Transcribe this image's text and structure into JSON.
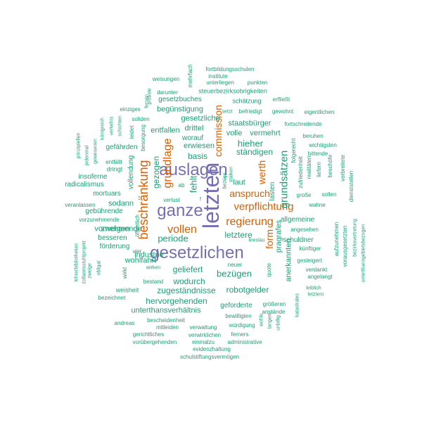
{
  "cloud": {
    "colors": {
      "teal": "#1b9e77",
      "orange": "#d95f02",
      "purple": "#7570b3"
    },
    "words": [
      {
        "text": "letzten",
        "color": "purple",
        "vertical": true
      },
      {
        "text": "ganze",
        "color": "purple",
        "vertical": false
      },
      {
        "text": "auslagen",
        "color": "purple",
        "vertical": false
      },
      {
        "text": "gesetzlichen",
        "color": "purple",
        "vertical": false
      },
      {
        "text": "beschränkung",
        "color": "orange",
        "vertical": true
      },
      {
        "text": "grundlage",
        "color": "orange",
        "vertical": true
      },
      {
        "text": "vollen",
        "color": "orange",
        "vertical": false
      },
      {
        "text": "regierung",
        "color": "orange",
        "vertical": false
      },
      {
        "text": "verpflichtung",
        "color": "orange",
        "vertical": false
      },
      {
        "text": "anspruch",
        "color": "orange",
        "vertical": false
      },
      {
        "text": "commission",
        "color": "orange",
        "vertical": true
      },
      {
        "text": "werth",
        "color": "orange",
        "vertical": true
      },
      {
        "text": "form",
        "color": "orange",
        "vertical": true
      },
      {
        "text": "grundsätzen",
        "color": "teal",
        "vertical": true
      },
      {
        "text": "fehlt",
        "color": "teal",
        "vertical": true
      },
      {
        "text": "gezogen",
        "color": "teal",
        "vertical": true
      },
      {
        "text": "periode",
        "color": "teal",
        "vertical": false
      },
      {
        "text": "hieher",
        "color": "teal",
        "vertical": false
      },
      {
        "text": "ständigen",
        "color": "teal",
        "vertical": false
      },
      {
        "text": "laut",
        "color": "teal",
        "vertical": false
      },
      {
        "text": "staatsbürger",
        "color": "teal",
        "vertical": false
      },
      {
        "text": "volle",
        "color": "teal",
        "vertical": false
      },
      {
        "text": "vermehrt",
        "color": "teal",
        "vertical": false
      },
      {
        "text": "basis",
        "color": "teal",
        "vertical": false
      },
      {
        "text": "drittel",
        "color": "teal",
        "vertical": false
      },
      {
        "text": "entfallen",
        "color": "teal",
        "vertical": false
      },
      {
        "text": "gesetzliche",
        "color": "teal",
        "vertical": false
      },
      {
        "text": "begünstigung",
        "color": "teal",
        "vertical": false
      },
      {
        "text": "erwiesen",
        "color": "teal",
        "vertical": false
      },
      {
        "text": "worauf",
        "color": "teal",
        "vertical": false
      },
      {
        "text": "gesetzbuches",
        "color": "teal",
        "vertical": false
      },
      {
        "text": "darunter",
        "color": "teal",
        "vertical": false
      },
      {
        "text": "steuerbezirksobrigkeiten",
        "color": "teal",
        "vertical": false
      },
      {
        "text": "unterliegen",
        "color": "teal",
        "vertical": false
      },
      {
        "text": "institute",
        "color": "teal",
        "vertical": false
      },
      {
        "text": "punkten",
        "color": "teal",
        "vertical": false
      },
      {
        "text": "fortbildungsschulen",
        "color": "teal",
        "vertical": false
      },
      {
        "text": "weisungen",
        "color": "teal",
        "vertical": false
      },
      {
        "text": "mehrfach",
        "color": "teal",
        "vertical": true
      },
      {
        "text": "schätzung",
        "color": "teal",
        "vertical": false
      },
      {
        "text": "erfließt",
        "color": "teal",
        "vertical": false
      },
      {
        "text": "befriedigt",
        "color": "teal",
        "vertical": false
      },
      {
        "text": "gewohnt",
        "color": "teal",
        "vertical": false
      },
      {
        "text": "eigentlichen",
        "color": "teal",
        "vertical": false
      },
      {
        "text": "setzt",
        "color": "teal",
        "vertical": false
      },
      {
        "text": "fortschreitende",
        "color": "teal",
        "vertical": false
      },
      {
        "text": "beruhen",
        "color": "teal",
        "vertical": false
      },
      {
        "text": "wichtigsten",
        "color": "teal",
        "vertical": false
      },
      {
        "text": "bittende",
        "color": "teal",
        "vertical": false
      },
      {
        "text": "folgerecht",
        "color": "teal",
        "vertical": true
      },
      {
        "text": "zufriedenheit",
        "color": "teal",
        "vertical": true
      },
      {
        "text": "realitäten",
        "color": "teal",
        "vertical": true
      },
      {
        "text": "liefern",
        "color": "teal",
        "vertical": true
      },
      {
        "text": "beschöfe",
        "color": "teal",
        "vertical": true
      },
      {
        "text": "verbreitete",
        "color": "teal",
        "vertical": true
      },
      {
        "text": "dienststellen",
        "color": "teal",
        "vertical": true
      },
      {
        "text": "sollen",
        "color": "teal",
        "vertical": false
      },
      {
        "text": "lasten",
        "color": "teal",
        "vertical": true
      },
      {
        "text": "große",
        "color": "teal",
        "vertical": false
      },
      {
        "text": "wahne",
        "color": "teal",
        "vertical": false
      },
      {
        "text": "allgemeine",
        "color": "teal",
        "vertical": false
      },
      {
        "text": "angesehen",
        "color": "teal",
        "vertical": false
      },
      {
        "text": "schuldner",
        "color": "teal",
        "vertical": false
      },
      {
        "text": "künftiger",
        "color": "teal",
        "vertical": false
      },
      {
        "text": "gesteigert",
        "color": "teal",
        "vertical": false
      },
      {
        "text": "verdankt",
        "color": "teal",
        "vertical": false
      },
      {
        "text": "angelangt",
        "color": "teal",
        "vertical": false
      },
      {
        "text": "leiblich",
        "color": "teal",
        "vertical": false
      },
      {
        "text": "letztern",
        "color": "teal",
        "vertical": false
      },
      {
        "text": "aufzunehmen",
        "color": "teal",
        "vertical": true
      },
      {
        "text": "vorausgesetzten",
        "color": "teal",
        "vertical": true
      },
      {
        "text": "bezirksvertretung",
        "color": "teal",
        "vertical": true
      },
      {
        "text": "unterthansgebietsbezogen",
        "color": "teal",
        "vertical": true
      },
      {
        "text": "pragrafes",
        "color": "teal",
        "vertical": true
      },
      {
        "text": "anerkannten",
        "color": "teal",
        "vertical": true
      },
      {
        "text": "letztere",
        "color": "teal",
        "vertical": false
      },
      {
        "text": "breslau",
        "color": "teal",
        "vertical": false
      },
      {
        "text": "bezügen",
        "color": "teal",
        "vertical": false
      },
      {
        "text": "neuer",
        "color": "teal",
        "vertical": false
      },
      {
        "text": "quote",
        "color": "teal",
        "vertical": true
      },
      {
        "text": "robotgelder",
        "color": "teal",
        "vertical": false
      },
      {
        "text": "zugeständnisse",
        "color": "teal",
        "vertical": false
      },
      {
        "text": "wodurch",
        "color": "teal",
        "vertical": false
      },
      {
        "text": "geliefert",
        "color": "teal",
        "vertical": false
      },
      {
        "text": "hervorgehenden",
        "color": "teal",
        "vertical": false
      },
      {
        "text": "unterthansverhältnis",
        "color": "teal",
        "vertical": false
      },
      {
        "text": "geforderte",
        "color": "teal",
        "vertical": false
      },
      {
        "text": "bewilligten",
        "color": "teal",
        "vertical": false
      },
      {
        "text": "würdigung",
        "color": "teal",
        "vertical": false
      },
      {
        "text": "größeren",
        "color": "teal",
        "vertical": false
      },
      {
        "text": "anstände",
        "color": "teal",
        "vertical": false
      },
      {
        "text": "wohle",
        "color": "teal",
        "vertical": true
      },
      {
        "text": "langem",
        "color": "teal",
        "vertical": true
      },
      {
        "text": "unbillig",
        "color": "teal",
        "vertical": true
      },
      {
        "text": "katastrales",
        "color": "teal",
        "vertical": true
      },
      {
        "text": "ferners",
        "color": "teal",
        "vertical": false
      },
      {
        "text": "administrative",
        "color": "teal",
        "vertical": false
      },
      {
        "text": "einmalzu",
        "color": "teal",
        "vertical": false
      },
      {
        "text": "verwirklichen",
        "color": "teal",
        "vertical": false
      },
      {
        "text": "verwaltung",
        "color": "teal",
        "vertical": false
      },
      {
        "text": "evidenzhaltung",
        "color": "teal",
        "vertical": false
      },
      {
        "text": "schulstiftungsvermögen",
        "color": "teal",
        "vertical": false
      },
      {
        "text": "vorübergehenden",
        "color": "teal",
        "vertical": false
      },
      {
        "text": "gerichtliches",
        "color": "teal",
        "vertical": false
      },
      {
        "text": "mitleiden",
        "color": "teal",
        "vertical": false
      },
      {
        "text": "andreas",
        "color": "teal",
        "vertical": false
      },
      {
        "text": "bescheidenheit",
        "color": "teal",
        "vertical": false
      },
      {
        "text": "bezeichnet",
        "color": "teal",
        "vertical": false
      },
      {
        "text": "weisheit",
        "color": "teal",
        "vertical": false
      },
      {
        "text": "bestand",
        "color": "teal",
        "vertical": false
      },
      {
        "text": "wirken",
        "color": "teal",
        "vertical": false
      },
      {
        "text": "wirkt",
        "color": "teal",
        "vertical": true
      },
      {
        "text": "vier",
        "color": "teal",
        "vertical": false
      },
      {
        "text": "industrie",
        "color": "teal",
        "vertical": false
      },
      {
        "text": "wohlfahrt",
        "color": "teal",
        "vertical": false
      },
      {
        "text": "öffentlich",
        "color": "teal",
        "vertical": true
      },
      {
        "text": "obligat",
        "color": "teal",
        "vertical": true
      },
      {
        "text": "zweige",
        "color": "teal",
        "vertical": true
      },
      {
        "text": "zollamtsstuhlprojekt",
        "color": "teal",
        "vertical": true
      },
      {
        "text": "lehrerbibliotheken",
        "color": "teal",
        "vertical": true
      },
      {
        "text": "förderung",
        "color": "teal",
        "vertical": false
      },
      {
        "text": "besseren",
        "color": "teal",
        "vertical": false
      },
      {
        "text": "vornehmende",
        "color": "teal",
        "vertical": false
      },
      {
        "text": "zweigen",
        "color": "teal",
        "vertical": false
      },
      {
        "text": "vorzunehmende",
        "color": "teal",
        "vertical": false
      },
      {
        "text": "gebührende",
        "color": "teal",
        "vertical": false
      },
      {
        "text": "veranlassen",
        "color": "teal",
        "vertical": false
      },
      {
        "text": "sodann",
        "color": "teal",
        "vertical": false
      },
      {
        "text": "verlust",
        "color": "teal",
        "vertical": false
      },
      {
        "text": "f",
        "color": "teal",
        "vertical": false
      },
      {
        "text": "ab",
        "color": "teal",
        "vertical": false
      },
      {
        "text": "mortuars",
        "color": "teal",
        "vertical": false
      },
      {
        "text": "radicalismus",
        "color": "teal",
        "vertical": false
      },
      {
        "text": "insoferne",
        "color": "teal",
        "vertical": false
      },
      {
        "text": "dringt",
        "color": "teal",
        "vertical": false
      },
      {
        "text": "entfällt",
        "color": "teal",
        "vertical": false
      },
      {
        "text": "vollendung",
        "color": "teal",
        "vertical": true
      },
      {
        "text": "besorgung",
        "color": "teal",
        "vertical": true
      },
      {
        "text": "gefährden",
        "color": "teal",
        "vertical": false
      },
      {
        "text": "leidet",
        "color": "teal",
        "vertical": true
      },
      {
        "text": "schichten",
        "color": "teal",
        "vertical": true
      },
      {
        "text": "verkehrs",
        "color": "teal",
        "vertical": true
      },
      {
        "text": "königreich",
        "color": "teal",
        "vertical": true
      },
      {
        "text": "jedenmal",
        "color": "teal",
        "vertical": true
      },
      {
        "text": "gewesenen",
        "color": "teal",
        "vertical": true
      },
      {
        "text": "prinzipiellen",
        "color": "teal",
        "vertical": true
      },
      {
        "text": "einziges",
        "color": "teal",
        "vertical": false
      },
      {
        "text": "soliden",
        "color": "teal",
        "vertical": false
      },
      {
        "text": "fernen",
        "color": "teal",
        "vertical": true
      },
      {
        "text": "probste",
        "color": "teal",
        "vertical": true
      },
      {
        "text": "stäiken",
        "color": "teal",
        "vertical": true
      },
      {
        "text": "bezüge",
        "color": "teal",
        "vertical": true
      },
      {
        "text": "t",
        "color": "teal",
        "vertical": false
      }
    ]
  }
}
